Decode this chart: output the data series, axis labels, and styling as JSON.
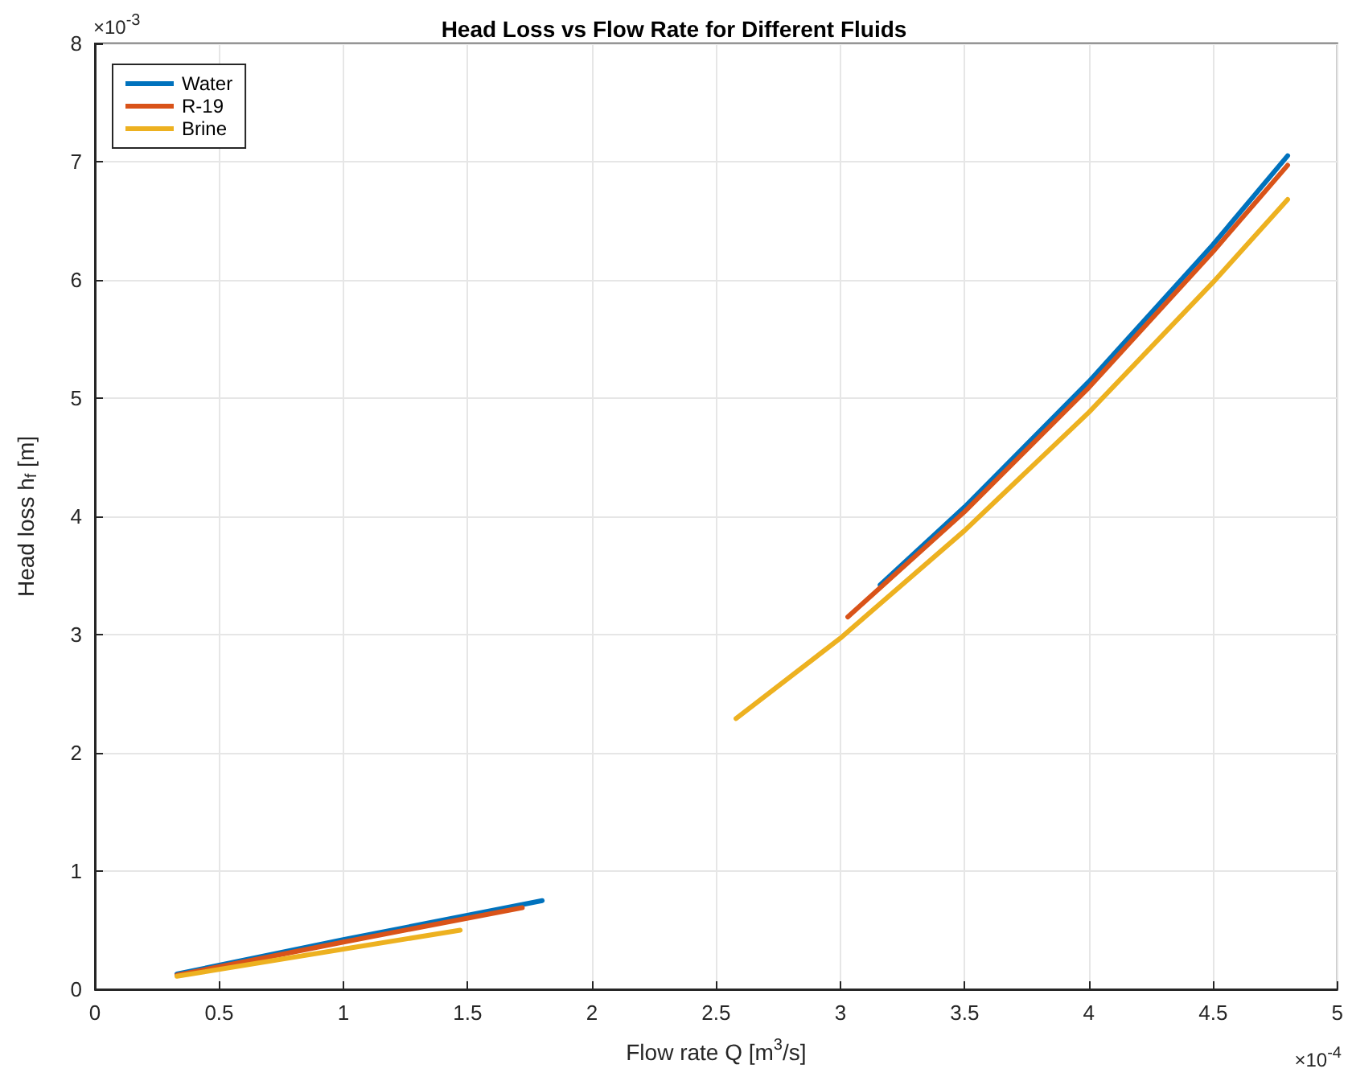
{
  "chart_data": {
    "type": "line",
    "title": "Head Loss vs Flow Rate for Different Fluids",
    "xlabel": "Flow rate Q [m$^{3}$/s]",
    "ylabel": "Head loss h$_{f}$ [m]",
    "annotations": [
      "×10$^{-3}$",
      "×10$^{-4}$"
    ],
    "series": [
      {
        "name": "Water",
        "color": "#0072bd",
        "x": [
          0.33,
          1.0,
          1.8,
          null,
          3.16,
          3.5,
          4.0,
          4.5,
          4.8
        ],
        "values": [
          0.13,
          0.42,
          0.75,
          null,
          3.42,
          4.08,
          5.14,
          6.3,
          7.05
        ]
      },
      {
        "name": "R-19",
        "color": "#d95319",
        "x": [
          0.33,
          1.0,
          1.72,
          null,
          3.03,
          3.5,
          4.0,
          4.5,
          4.8
        ],
        "values": [
          0.12,
          0.4,
          0.69,
          null,
          3.15,
          4.04,
          5.09,
          6.24,
          6.97
        ]
      },
      {
        "name": "Brine",
        "color": "#edb120",
        "x": [
          0.33,
          1.0,
          1.47,
          null,
          2.58,
          3.0,
          3.5,
          4.0,
          4.5,
          4.8
        ],
        "values": [
          0.11,
          0.34,
          0.5,
          null,
          2.29,
          2.97,
          3.88,
          4.88,
          5.98,
          6.68
        ]
      }
    ],
    "xlim": [
      0,
      5
    ],
    "xticks": [
      0,
      0.5,
      1,
      1.5,
      2,
      2.5,
      3,
      3.5,
      4,
      4.5,
      5
    ],
    "ylim": [
      0,
      8
    ],
    "yticks": [
      0,
      1,
      2,
      3,
      4,
      5,
      6,
      7,
      8
    ],
    "grid": true,
    "legend": "top left",
    "marker": "none",
    "line_style": "solid"
  }
}
